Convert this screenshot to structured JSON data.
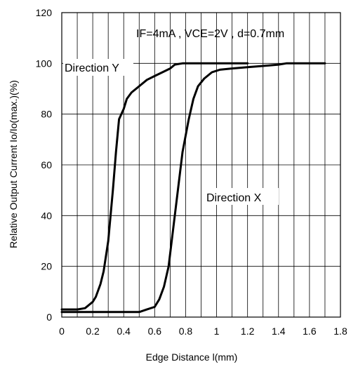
{
  "chart_data": {
    "type": "line",
    "xlabel": "Edge Distance l(mm)",
    "ylabel": "Relative Output Current Io/Io(max.)(%)",
    "xlim": [
      0,
      1.8
    ],
    "ylim": [
      0,
      120
    ],
    "x_ticks": [
      "0",
      "0.2",
      "0.4",
      "0.6",
      "0.8",
      "1",
      "1.2",
      "1.4",
      "1.6",
      "1.8"
    ],
    "y_ticks": [
      "0",
      "20",
      "40",
      "60",
      "80",
      "100",
      "120"
    ],
    "grid": true,
    "annotations": [
      {
        "text": "IF=4mA , VCE=2V , d=0.7mm"
      },
      {
        "text": "Direction Y"
      },
      {
        "text": "Direction X"
      }
    ],
    "series": [
      {
        "name": "Direction Y",
        "points": [
          [
            0,
            3
          ],
          [
            0.1,
            3
          ],
          [
            0.15,
            3.5
          ],
          [
            0.2,
            6
          ],
          [
            0.22,
            8
          ],
          [
            0.25,
            13
          ],
          [
            0.27,
            18
          ],
          [
            0.3,
            30
          ],
          [
            0.33,
            50
          ],
          [
            0.35,
            65
          ],
          [
            0.37,
            78
          ],
          [
            0.4,
            82
          ],
          [
            0.42,
            86
          ],
          [
            0.45,
            88.5
          ],
          [
            0.5,
            91
          ],
          [
            0.55,
            93.5
          ],
          [
            0.6,
            95
          ],
          [
            0.65,
            96.5
          ],
          [
            0.7,
            98
          ],
          [
            0.73,
            99.5
          ],
          [
            0.78,
            100
          ],
          [
            1.2,
            100
          ]
        ]
      },
      {
        "name": "Direction X",
        "points": [
          [
            0,
            2
          ],
          [
            0.3,
            2
          ],
          [
            0.5,
            2
          ],
          [
            0.55,
            3
          ],
          [
            0.6,
            4
          ],
          [
            0.63,
            7
          ],
          [
            0.66,
            12
          ],
          [
            0.69,
            20
          ],
          [
            0.72,
            35
          ],
          [
            0.75,
            50
          ],
          [
            0.78,
            65
          ],
          [
            0.82,
            78
          ],
          [
            0.85,
            86
          ],
          [
            0.88,
            91
          ],
          [
            0.92,
            94
          ],
          [
            0.97,
            96.5
          ],
          [
            1.02,
            97.5
          ],
          [
            1.1,
            98
          ],
          [
            1.2,
            98.5
          ],
          [
            1.3,
            99
          ],
          [
            1.4,
            99.5
          ],
          [
            1.45,
            100
          ],
          [
            1.7,
            100
          ]
        ]
      }
    ]
  }
}
